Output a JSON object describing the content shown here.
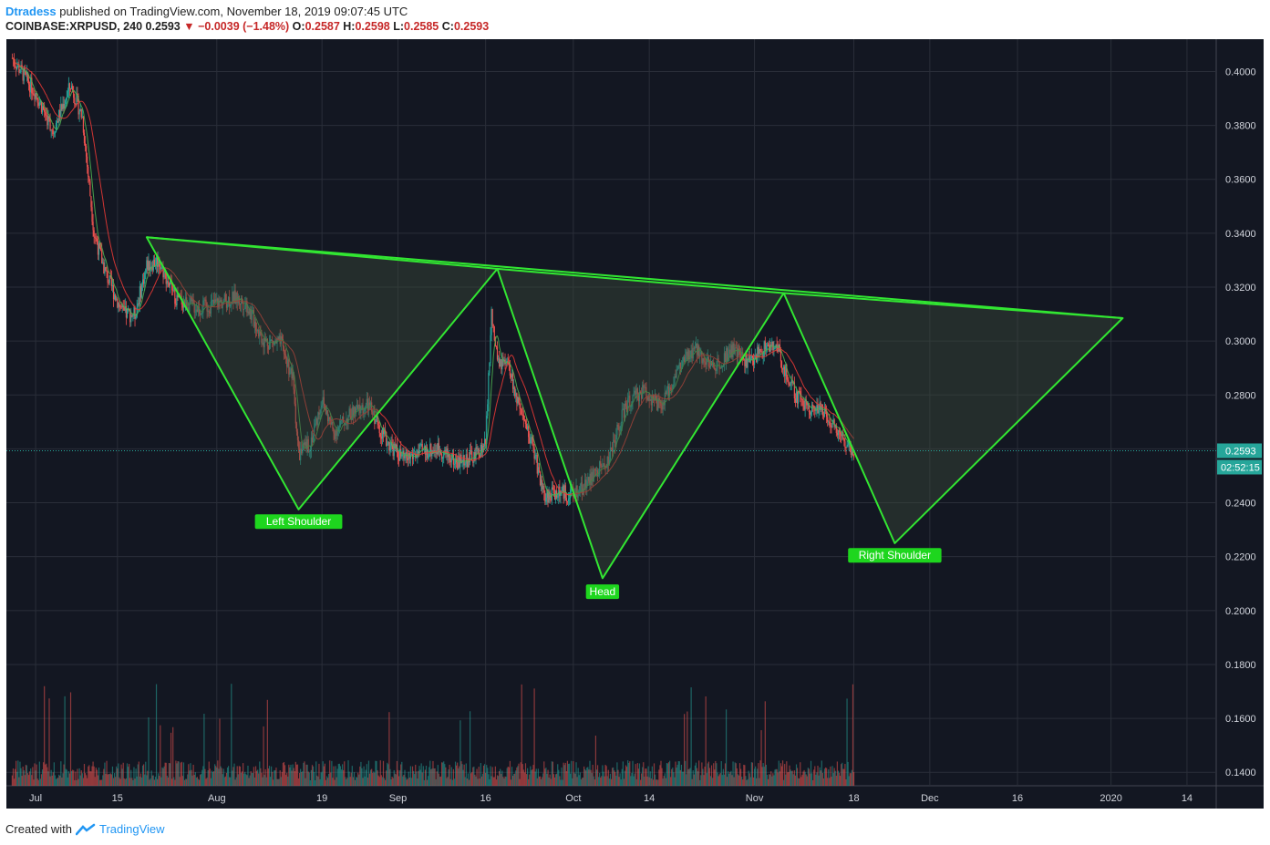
{
  "header": {
    "author": "Dtradess",
    "published_text": "published on TradingView.com, November 18, 2019 09:07:45 UTC"
  },
  "ohlc": {
    "symbol": "COINBASE:XRPUSD, 240",
    "last": "0.2593",
    "change_arrow": "▼",
    "change": "−0.0039 (−1.48%)",
    "o_label": "O:",
    "o": "0.2587",
    "h_label": "H:",
    "h": "0.2598",
    "l_label": "L:",
    "l": "0.2585",
    "c_label": "C:",
    "c": "0.2593"
  },
  "footer": {
    "created_with": "Created with",
    "brand": "TradingView"
  },
  "chart_data": {
    "type": "line",
    "y_axis": {
      "min": 0.135,
      "max": 0.412,
      "ticks": [
        0.4,
        0.38,
        0.36,
        0.34,
        0.32,
        0.3,
        0.28,
        0.26,
        0.24,
        0.22,
        0.2,
        0.18,
        0.16,
        0.14
      ],
      "tick_labels": [
        "0.4000",
        "0.3800",
        "0.3600",
        "0.3400",
        "0.3200",
        "0.3000",
        "0.2800",
        "0.2600",
        "0.2400",
        "0.2200",
        "0.2000",
        "0.1800",
        "0.1600",
        "0.1400"
      ]
    },
    "x_axis": {
      "start": "2019-06-26",
      "end": "2020-01-19",
      "tick_labels": [
        {
          "date": "2019-07-01",
          "label": "Jul"
        },
        {
          "date": "2019-07-15",
          "label": "15"
        },
        {
          "date": "2019-08-01",
          "label": "Aug"
        },
        {
          "date": "2019-08-19",
          "label": "19"
        },
        {
          "date": "2019-09-01",
          "label": "Sep"
        },
        {
          "date": "2019-09-16",
          "label": "16"
        },
        {
          "date": "2019-10-01",
          "label": "Oct"
        },
        {
          "date": "2019-10-14",
          "label": "14"
        },
        {
          "date": "2019-11-01",
          "label": "Nov"
        },
        {
          "date": "2019-11-18",
          "label": "18"
        },
        {
          "date": "2019-12-01",
          "label": "Dec"
        },
        {
          "date": "2019-12-16",
          "label": "16"
        },
        {
          "date": "2020-01-01",
          "label": "2020"
        },
        {
          "date": "2020-01-14",
          "label": "14"
        }
      ]
    },
    "grid": true,
    "last_price": {
      "value": 0.2593,
      "label": "0.2593",
      "countdown": "02:52:15"
    },
    "price_series": {
      "name": "",
      "x": [
        "2019-06-27",
        "2019-07-01",
        "2019-07-04",
        "2019-07-07",
        "2019-07-09",
        "2019-07-11",
        "2019-07-13",
        "2019-07-16",
        "2019-07-18",
        "2019-07-20",
        "2019-07-22",
        "2019-07-25",
        "2019-07-29",
        "2019-08-01",
        "2019-08-04",
        "2019-08-06",
        "2019-08-09",
        "2019-08-12",
        "2019-08-14",
        "2019-08-15",
        "2019-08-17",
        "2019-08-19",
        "2019-08-21",
        "2019-08-24",
        "2019-08-27",
        "2019-08-30",
        "2019-09-02",
        "2019-09-05",
        "2019-09-08",
        "2019-09-11",
        "2019-09-14",
        "2019-09-16",
        "2019-09-17",
        "2019-09-18",
        "2019-09-20",
        "2019-09-22",
        "2019-09-24",
        "2019-09-26",
        "2019-09-28",
        "2019-10-01",
        "2019-10-04",
        "2019-10-07",
        "2019-10-10",
        "2019-10-13",
        "2019-10-16",
        "2019-10-19",
        "2019-10-22",
        "2019-10-25",
        "2019-10-28",
        "2019-10-31",
        "2019-11-03",
        "2019-11-05",
        "2019-11-06",
        "2019-11-08",
        "2019-11-10",
        "2019-11-13",
        "2019-11-16",
        "2019-11-18"
      ],
      "y": [
        0.405,
        0.392,
        0.378,
        0.395,
        0.383,
        0.34,
        0.325,
        0.31,
        0.31,
        0.328,
        0.33,
        0.316,
        0.312,
        0.314,
        0.316,
        0.314,
        0.3,
        0.299,
        0.286,
        0.258,
        0.262,
        0.278,
        0.266,
        0.273,
        0.276,
        0.263,
        0.256,
        0.259,
        0.26,
        0.255,
        0.257,
        0.262,
        0.31,
        0.292,
        0.29,
        0.272,
        0.262,
        0.242,
        0.244,
        0.243,
        0.249,
        0.256,
        0.276,
        0.282,
        0.275,
        0.29,
        0.297,
        0.29,
        0.297,
        0.292,
        0.298,
        0.297,
        0.29,
        0.28,
        0.276,
        0.274,
        0.264,
        0.259
      ]
    },
    "pattern_lines": {
      "neckline": {
        "x": [
          "2019-07-20",
          "2020-01-03"
        ],
        "y": [
          0.3385,
          0.3085
        ]
      },
      "left_shoulder": {
        "x": [
          "2019-07-20",
          "2019-08-15",
          "2019-09-18"
        ],
        "y": [
          0.3385,
          0.2375,
          0.3268
        ]
      },
      "head": {
        "x": [
          "2019-09-18",
          "2019-10-06",
          "2019-11-06"
        ],
        "y": [
          0.3268,
          0.212,
          0.3178
        ]
      },
      "right_shoulder": {
        "x": [
          "2019-11-06",
          "2019-11-25",
          "2020-01-03"
        ],
        "y": [
          0.3178,
          0.225,
          0.3085
        ]
      }
    },
    "annotations": [
      {
        "text": "Left Shoulder",
        "x": "2019-08-15",
        "y": 0.233
      },
      {
        "text": "Head",
        "x": "2019-10-06",
        "y": 0.207
      },
      {
        "text": "Right Shoulder",
        "x": "2019-11-25",
        "y": 0.2205
      }
    ],
    "colors": {
      "background": "#131722",
      "grid": "#2a2e39",
      "pattern_line": "#32e632",
      "pattern_fill": "#3a4a3a",
      "label_bg": "#1ed61e",
      "candle_up": "#26a69a",
      "candle_down": "#ef5350",
      "ma_fast": "#4caf50",
      "ma_slow": "#e53935",
      "last_price": "#26a69a"
    }
  }
}
